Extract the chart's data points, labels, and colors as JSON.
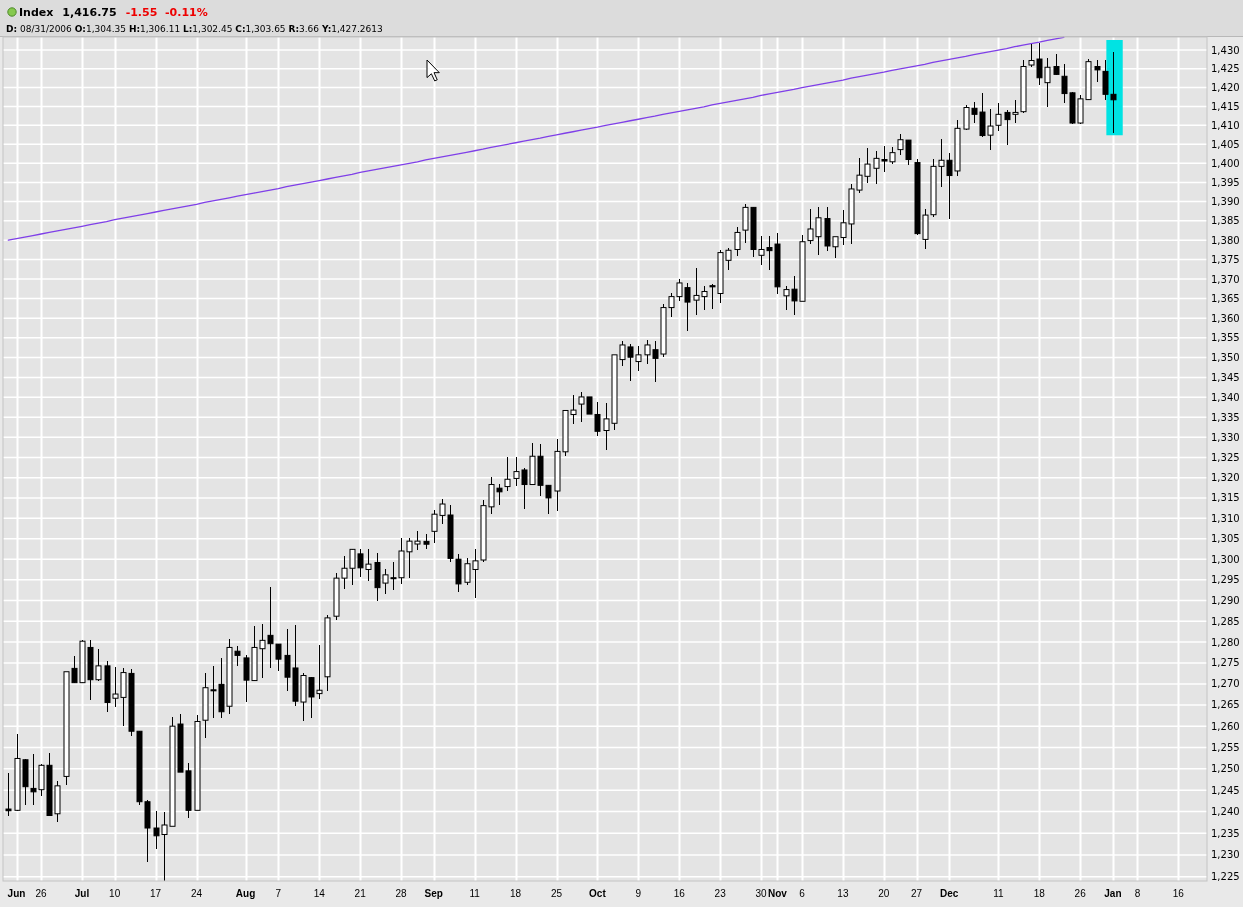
{
  "chart_data": {
    "type": "candlestick",
    "title": "Index",
    "subtitle": "D: 08/31/2006 O:1,304.35 H:1,306.11 L:1,302.45 C:1,303.65 R:3.66 Y:1,427.2613",
    "annotations": [
      "1,416.75",
      "-1.55  -0.11%"
    ],
    "categories": [
      null,
      "Jun",
      null,
      null,
      "26",
      null,
      null,
      null,
      null,
      "Jul",
      null,
      null,
      null,
      "10",
      null,
      null,
      null,
      null,
      "17",
      null,
      null,
      null,
      null,
      "24",
      null,
      null,
      null,
      null,
      null,
      "Aug",
      null,
      null,
      null,
      "7",
      null,
      null,
      null,
      null,
      "14",
      null,
      null,
      null,
      null,
      "21",
      null,
      null,
      null,
      null,
      "28",
      null,
      null,
      null,
      "Sep",
      null,
      null,
      null,
      null,
      "11",
      null,
      null,
      null,
      null,
      "18",
      null,
      null,
      null,
      null,
      "25",
      null,
      null,
      null,
      null,
      "Oct",
      null,
      null,
      null,
      null,
      "9",
      null,
      null,
      null,
      null,
      "16",
      null,
      null,
      null,
      null,
      "23",
      null,
      null,
      null,
      null,
      "30",
      null,
      "Nov",
      null,
      null,
      "6",
      null,
      null,
      null,
      null,
      "13",
      null,
      null,
      null,
      null,
      "20",
      null,
      null,
      null,
      "27",
      null,
      null,
      null,
      "Dec",
      null,
      null,
      null,
      null,
      null,
      "11",
      null,
      null,
      null,
      null,
      "18",
      null,
      null,
      null,
      null,
      "26",
      null,
      null,
      null,
      "Jan",
      null,
      null,
      "8",
      null,
      null,
      null,
      null,
      "16",
      null,
      null,
      null
    ],
    "ohlc": [
      [
        1240.6,
        1249.1,
        1239.0,
        1240.2
      ],
      [
        1240.3,
        1258.2,
        1240.2,
        1252.4
      ],
      [
        1252.1,
        1252.3,
        1241.5,
        1245.8
      ],
      [
        1245.4,
        1253.4,
        1241.5,
        1244.6
      ],
      [
        1245.1,
        1251.1,
        1243.6,
        1250.8
      ],
      [
        1250.8,
        1253.7,
        1239.0,
        1239.1
      ],
      [
        1239.5,
        1247.2,
        1237.5,
        1246.0
      ],
      [
        1248.2,
        1272.9,
        1246.1,
        1272.9
      ],
      [
        1273.7,
        1276.6,
        1270.3,
        1270.3
      ],
      [
        1270.3,
        1280.5,
        1270.3,
        1280.2
      ],
      [
        1278.7,
        1280.4,
        1266.1,
        1271.0
      ],
      [
        1271.0,
        1278.4,
        1270.8,
        1274.3
      ],
      [
        1274.3,
        1275.4,
        1263.3,
        1265.6
      ],
      [
        1266.6,
        1274.1,
        1264.5,
        1267.6
      ],
      [
        1266.8,
        1273.9,
        1260.0,
        1272.7
      ],
      [
        1272.5,
        1273.5,
        1257.6,
        1258.8
      ],
      [
        1258.8,
        1258.9,
        1241.5,
        1242.3
      ],
      [
        1242.3,
        1242.7,
        1228.3,
        1236.2
      ],
      [
        1236.2,
        1240.2,
        1231.3,
        1234.4
      ],
      [
        1234.7,
        1239.9,
        1224.1,
        1236.9
      ],
      [
        1236.6,
        1262.1,
        1236.6,
        1260.0
      ],
      [
        1260.5,
        1262.9,
        1249.2,
        1249.2
      ],
      [
        1249.5,
        1251.3,
        1238.6,
        1240.3
      ],
      [
        1240.3,
        1262.7,
        1240.3,
        1261.1
      ],
      [
        1261.4,
        1272.5,
        1257.2,
        1269.1
      ],
      [
        1268.6,
        1274.3,
        1261.9,
        1268.4
      ],
      [
        1269.9,
        1276.1,
        1262.0,
        1263.4
      ],
      [
        1264.7,
        1280.7,
        1262.9,
        1278.7
      ],
      [
        1277.8,
        1279.0,
        1274.3,
        1276.8
      ],
      [
        1276.2,
        1276.8,
        1265.6,
        1270.9
      ],
      [
        1270.8,
        1283.8,
        1270.8,
        1278.7
      ],
      [
        1278.4,
        1284.3,
        1271.3,
        1280.4
      ],
      [
        1281.6,
        1293.2,
        1273.8,
        1279.6
      ],
      [
        1279.5,
        1279.5,
        1273.1,
        1275.9
      ],
      [
        1276.8,
        1283.1,
        1268.3,
        1271.6
      ],
      [
        1273.8,
        1284.2,
        1264.7,
        1265.9
      ],
      [
        1265.7,
        1272.7,
        1261.3,
        1272.0
      ],
      [
        1271.5,
        1271.7,
        1262.0,
        1266.9
      ],
      [
        1267.7,
        1279.4,
        1266.5,
        1268.5
      ],
      [
        1271.7,
        1286.6,
        1268.3,
        1285.8
      ],
      [
        1286.2,
        1296.6,
        1285.4,
        1295.4
      ],
      [
        1295.4,
        1300.8,
        1292.8,
        1297.8
      ],
      [
        1297.8,
        1302.6,
        1293.8,
        1302.4
      ],
      [
        1301.3,
        1302.6,
        1295.7,
        1297.9
      ],
      [
        1297.5,
        1302.6,
        1294.6,
        1298.8
      ],
      [
        1299.2,
        1301.6,
        1289.8,
        1293.1
      ],
      [
        1294.2,
        1297.5,
        1291.6,
        1296.2
      ],
      [
        1295.5,
        1299.2,
        1292.6,
        1295.3
      ],
      [
        1295.5,
        1305.2,
        1293.9,
        1302.0
      ],
      [
        1301.8,
        1305.2,
        1295.5,
        1304.4
      ],
      [
        1303.7,
        1306.8,
        1302.2,
        1304.4
      ],
      [
        1304.35,
        1306.11,
        1302.45,
        1303.65
      ],
      [
        1306.8,
        1312.0,
        1304.0,
        1311.0
      ],
      [
        1310.7,
        1314.7,
        1308.7,
        1313.5
      ],
      [
        1310.8,
        1313.3,
        1299.2,
        1300.2
      ],
      [
        1300.0,
        1301.2,
        1292.0,
        1294.0
      ],
      [
        1294.4,
        1300.2,
        1293.8,
        1298.9
      ],
      [
        1297.5,
        1302.5,
        1290.7,
        1299.6
      ],
      [
        1299.8,
        1314.6,
        1299.3,
        1313.1
      ],
      [
        1312.8,
        1320.1,
        1311.1,
        1318.3
      ],
      [
        1317.4,
        1318.4,
        1313.3,
        1316.5
      ],
      [
        1317.8,
        1325.0,
        1316.6,
        1319.6
      ],
      [
        1319.8,
        1325.1,
        1318.0,
        1321.5
      ],
      [
        1321.9,
        1322.3,
        1312.2,
        1318.3
      ],
      [
        1318.3,
        1328.6,
        1318.3,
        1325.3
      ],
      [
        1325.3,
        1328.4,
        1315.4,
        1318.1
      ],
      [
        1318.1,
        1318.1,
        1311.0,
        1315.0
      ],
      [
        1316.7,
        1329.7,
        1311.7,
        1326.5
      ],
      [
        1326.4,
        1336.7,
        1325.3,
        1336.7
      ],
      [
        1335.7,
        1340.5,
        1333.4,
        1336.8
      ],
      [
        1338.3,
        1341.4,
        1333.7,
        1340.1
      ],
      [
        1340.1,
        1340.2,
        1335.8,
        1335.8
      ],
      [
        1335.7,
        1338.7,
        1330.3,
        1331.5
      ],
      [
        1331.7,
        1338.5,
        1326.9,
        1334.6
      ],
      [
        1333.5,
        1350.7,
        1331.8,
        1350.7
      ],
      [
        1349.5,
        1354.1,
        1347.8,
        1353.2
      ],
      [
        1352.7,
        1353.5,
        1344.2,
        1350.1
      ],
      [
        1349.0,
        1352.9,
        1346.5,
        1350.7
      ],
      [
        1350.7,
        1354.5,
        1348.4,
        1353.2
      ],
      [
        1352.0,
        1354.2,
        1343.8,
        1349.8
      ],
      [
        1350.9,
        1363.7,
        1350.1,
        1362.7
      ],
      [
        1362.7,
        1366.5,
        1360.3,
        1365.5
      ],
      [
        1365.5,
        1370.0,
        1364.4,
        1369.0
      ],
      [
        1367.8,
        1369.0,
        1356.7,
        1364.1
      ],
      [
        1364.6,
        1372.8,
        1360.8,
        1365.8
      ],
      [
        1365.5,
        1368.2,
        1362.1,
        1366.8
      ],
      [
        1368.3,
        1368.6,
        1362.3,
        1368.0
      ],
      [
        1366.3,
        1377.4,
        1363.9,
        1376.8
      ],
      [
        1374.8,
        1377.9,
        1372.4,
        1377.4
      ],
      [
        1377.6,
        1383.3,
        1375.8,
        1382.0
      ],
      [
        1382.6,
        1389.3,
        1379.2,
        1388.5
      ],
      [
        1388.5,
        1388.7,
        1375.6,
        1377.6
      ],
      [
        1376.1,
        1381.0,
        1373.5,
        1377.6
      ],
      [
        1378.1,
        1381.0,
        1372.2,
        1377.3
      ],
      [
        1379.0,
        1381.8,
        1366.2,
        1368.0
      ],
      [
        1365.7,
        1368.3,
        1362.1,
        1367.3
      ],
      [
        1367.4,
        1370.9,
        1360.8,
        1364.4
      ],
      [
        1364.3,
        1381.3,
        1364.3,
        1379.6
      ],
      [
        1379.9,
        1388.1,
        1379.0,
        1382.9
      ],
      [
        1380.9,
        1388.6,
        1376.1,
        1385.8
      ],
      [
        1385.6,
        1388.7,
        1377.2,
        1378.5
      ],
      [
        1378.3,
        1380.9,
        1375.5,
        1380.9
      ],
      [
        1380.7,
        1387.7,
        1378.8,
        1384.5
      ],
      [
        1384.2,
        1394.6,
        1379.0,
        1393.3
      ],
      [
        1393.0,
        1401.5,
        1392.2,
        1396.9
      ],
      [
        1396.6,
        1404.0,
        1394.8,
        1399.8
      ],
      [
        1398.7,
        1403.3,
        1394.7,
        1401.3
      ],
      [
        1401.0,
        1404.5,
        1397.7,
        1400.6
      ],
      [
        1400.4,
        1404.3,
        1399.7,
        1402.8
      ],
      [
        1403.6,
        1407.8,
        1402.3,
        1406.2
      ],
      [
        1406.1,
        1406.1,
        1399.5,
        1401.0
      ],
      [
        1400.2,
        1401.1,
        1381.3,
        1381.7
      ],
      [
        1380.2,
        1388.1,
        1377.6,
        1386.5
      ],
      [
        1386.6,
        1401.2,
        1385.9,
        1399.2
      ],
      [
        1399.2,
        1406.3,
        1393.8,
        1400.8
      ],
      [
        1400.8,
        1402.6,
        1385.6,
        1396.8
      ],
      [
        1398.0,
        1411.3,
        1396.8,
        1409.2
      ],
      [
        1409.0,
        1415.3,
        1408.8,
        1414.7
      ],
      [
        1414.5,
        1416.2,
        1410.7,
        1412.9
      ],
      [
        1413.5,
        1418.5,
        1406.8,
        1407.3
      ],
      [
        1407.4,
        1414.2,
        1403.4,
        1409.8
      ],
      [
        1410.0,
        1415.8,
        1408.5,
        1412.9
      ],
      [
        1413.4,
        1414.0,
        1404.8,
        1411.5
      ],
      [
        1412.9,
        1416.8,
        1410.7,
        1413.4
      ],
      [
        1413.6,
        1427.3,
        1413.2,
        1425.6
      ],
      [
        1426.0,
        1431.5,
        1425.4,
        1427.2
      ],
      [
        1427.6,
        1431.8,
        1420.7,
        1422.6
      ],
      [
        1421.3,
        1428.0,
        1414.8,
        1425.4
      ],
      [
        1425.6,
        1428.9,
        1423.4,
        1423.5
      ],
      [
        1423.0,
        1426.3,
        1416.0,
        1418.4
      ],
      [
        1418.6,
        1418.8,
        1410.4,
        1410.6
      ],
      [
        1410.6,
        1417.9,
        1410.4,
        1417.0
      ],
      [
        1416.8,
        1427.6,
        1416.8,
        1426.9
      ],
      [
        1425.6,
        1427.4,
        1421.5,
        1424.7
      ],
      [
        1424.3,
        1427.4,
        1416.8,
        1418.2
      ],
      [
        1418.2,
        1429.6,
        1407.9,
        1416.75
      ],
      null,
      null,
      null,
      null,
      null,
      null,
      null,
      null,
      null,
      null,
      null
    ],
    "series": [
      {
        "type": "line",
        "color": "#7f3fe8",
        "values": [
          1380.0,
          1380.4,
          1380.8,
          1381.2,
          1381.6,
          1382.0,
          1382.4,
          1382.8,
          1383.2,
          1383.6,
          1384.0,
          1384.4,
          1384.8,
          1385.3,
          1385.7,
          1386.1,
          1386.5,
          1386.9,
          1387.3,
          1387.7,
          1388.1,
          1388.5,
          1388.9,
          1389.3,
          1389.8,
          1390.2,
          1390.6,
          1391.0,
          1391.4,
          1391.8,
          1392.2,
          1392.6,
          1393.0,
          1393.4,
          1393.9,
          1394.3,
          1394.7,
          1395.1,
          1395.5,
          1395.9,
          1396.3,
          1396.7,
          1397.1,
          1397.6,
          1398.0,
          1398.4,
          1398.8,
          1399.2,
          1399.6,
          1400.0,
          1400.4,
          1400.9,
          1401.3,
          1401.7,
          1402.1,
          1402.5,
          1402.9,
          1403.3,
          1403.7,
          1404.2,
          1404.6,
          1405.0,
          1405.4,
          1405.8,
          1406.2,
          1406.6,
          1407.1,
          1407.5,
          1407.9,
          1408.3,
          1408.7,
          1409.1,
          1409.5,
          1410.0,
          1410.4,
          1410.8,
          1411.2,
          1411.6,
          1412.0,
          1412.4,
          1412.9,
          1413.3,
          1413.7,
          1414.1,
          1414.5,
          1414.9,
          1415.4,
          1415.8,
          1416.2,
          1416.6,
          1417.0,
          1417.4,
          1417.9,
          1418.3,
          1418.7,
          1419.1,
          1419.5,
          1420.0,
          1420.4,
          1420.8,
          1421.2,
          1421.6,
          1422.0,
          1422.5,
          1422.9,
          1423.3,
          1423.7,
          1424.1,
          1424.6,
          1425.0,
          1425.4,
          1425.8,
          1426.2,
          1426.7,
          1427.1,
          1427.5,
          1427.9,
          1428.3,
          1428.8,
          1429.2,
          1429.6,
          1430.0,
          1430.4,
          1430.9,
          1431.3,
          1431.7,
          1432.1,
          1432.6,
          1433.0,
          1433.4,
          null,
          null,
          null,
          null,
          null,
          null,
          null,
          null,
          null,
          null,
          null,
          null,
          null,
          null,
          null,
          null,
          null
        ]
      }
    ],
    "ylim": [
      1224,
      1433.5
    ],
    "yticks": [
      {
        "value": 1225,
        "label": "1,225"
      },
      {
        "value": 1230,
        "label": "1,230"
      },
      {
        "value": 1235,
        "label": "1,235"
      },
      {
        "value": 1240,
        "label": "1,240"
      },
      {
        "value": 1245,
        "label": "1,245"
      },
      {
        "value": 1250,
        "label": "1,250"
      },
      {
        "value": 1255,
        "label": "1,255"
      },
      {
        "value": 1260,
        "label": "1,260"
      },
      {
        "value": 1265,
        "label": "1,265"
      },
      {
        "value": 1270,
        "label": "1,270"
      },
      {
        "value": 1275,
        "label": "1,275"
      },
      {
        "value": 1280,
        "label": "1,280"
      },
      {
        "value": 1285,
        "label": "1,285"
      },
      {
        "value": 1290,
        "label": "1,290"
      },
      {
        "value": 1295,
        "label": "1,295"
      },
      {
        "value": 1300,
        "label": "1,300"
      },
      {
        "value": 1305,
        "label": "1,305"
      },
      {
        "value": 1310,
        "label": "1,310"
      },
      {
        "value": 1315,
        "label": "1,315"
      },
      {
        "value": 1320,
        "label": "1,320"
      },
      {
        "value": 1325,
        "label": "1,325"
      },
      {
        "value": 1330,
        "label": "1,330"
      },
      {
        "value": 1335,
        "label": "1,335"
      },
      {
        "value": 1340,
        "label": "1,340"
      },
      {
        "value": 1345,
        "label": "1,345"
      },
      {
        "value": 1350,
        "label": "1,350"
      },
      {
        "value": 1355,
        "label": "1,355"
      },
      {
        "value": 1360,
        "label": "1,360"
      },
      {
        "value": 1365,
        "label": "1,365"
      },
      {
        "value": 1370,
        "label": "1,370"
      },
      {
        "value": 1375,
        "label": "1,375"
      },
      {
        "value": 1380,
        "label": "1,380"
      },
      {
        "value": 1385,
        "label": "1,385"
      },
      {
        "value": 1390,
        "label": "1,390"
      },
      {
        "value": 1395,
        "label": "1,395"
      },
      {
        "value": 1400,
        "label": "1,400"
      },
      {
        "value": 1405,
        "label": "1,405"
      },
      {
        "value": 1410,
        "label": "1,410"
      },
      {
        "value": 1415,
        "label": "1,415"
      },
      {
        "value": 1420,
        "label": "1,420"
      },
      {
        "value": 1425,
        "label": "1,425"
      },
      {
        "value": 1430,
        "label": "1,430"
      }
    ],
    "log": true,
    "grid": true
  }
}
